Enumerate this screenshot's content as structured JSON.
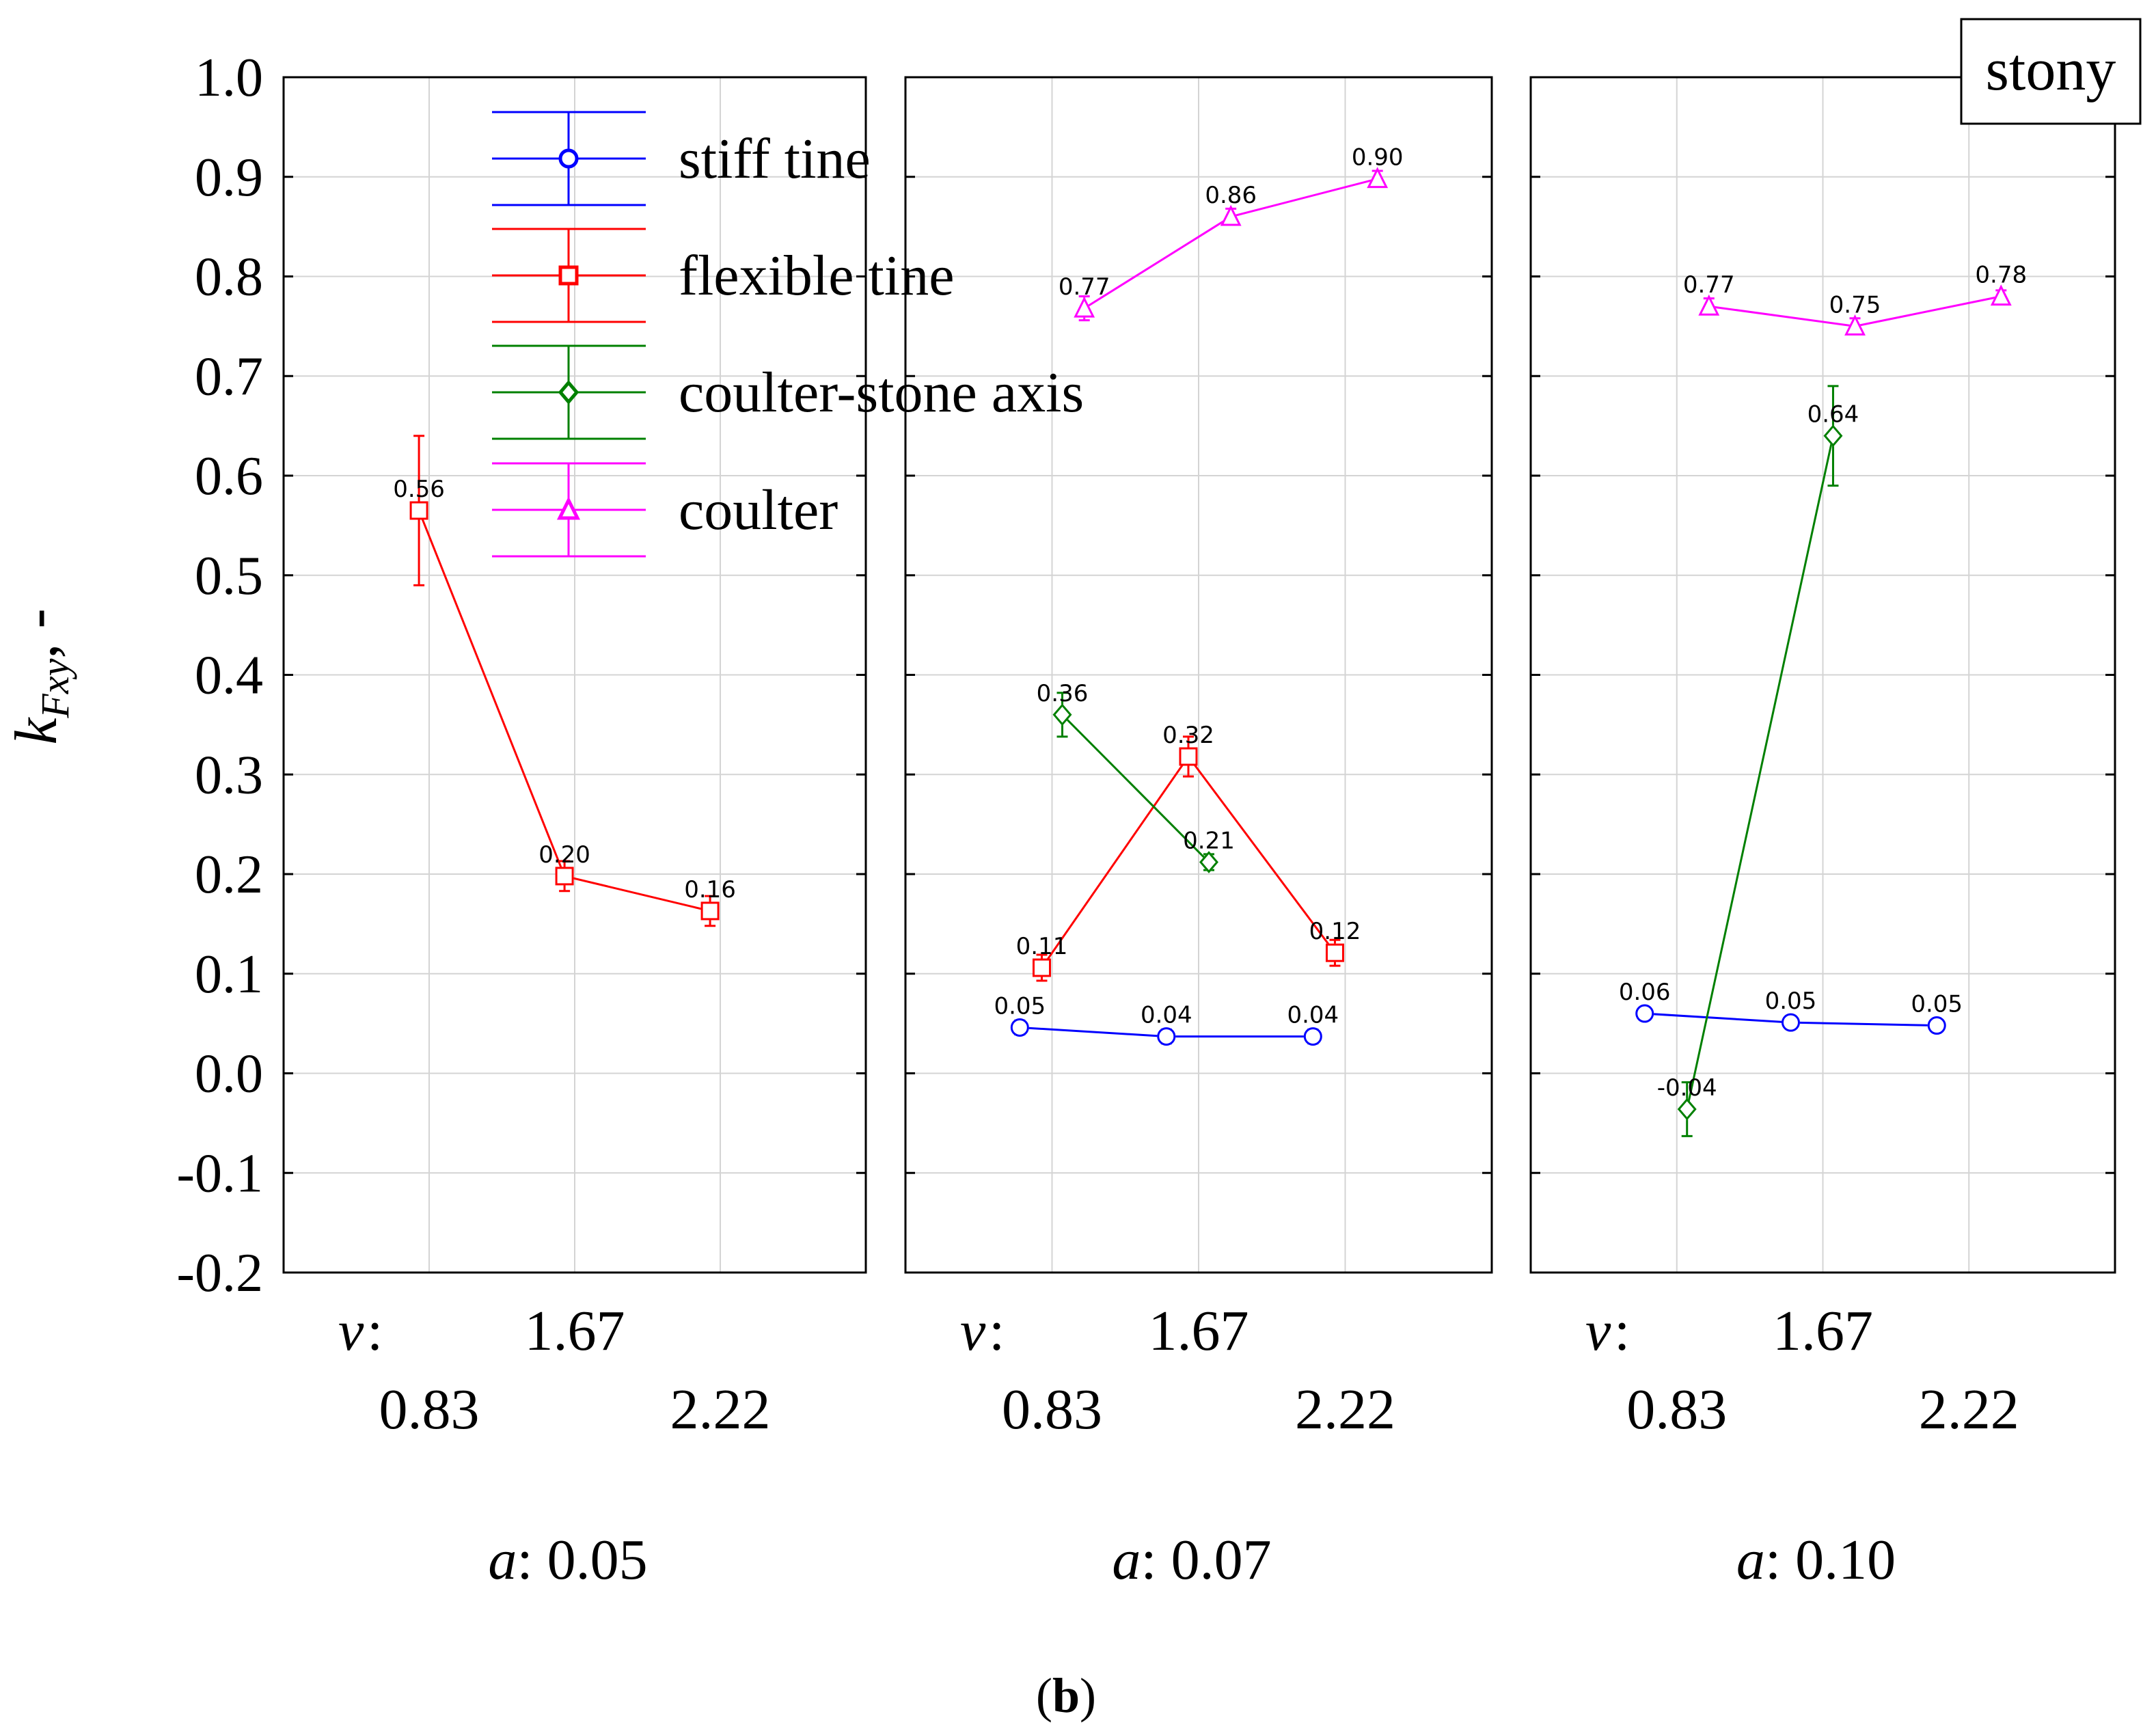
{
  "chart_data": {
    "type": "line",
    "title": "",
    "ylabel_main": "k",
    "ylabel_sub": "Fxy",
    "ylabel_suffix": ", -",
    "ylim": [
      -0.2,
      1.0
    ],
    "yticks": [
      "1.0",
      "0.9",
      "0.8",
      "0.7",
      "0.6",
      "0.5",
      "0.4",
      "0.3",
      "0.2",
      "0.1",
      "0.0",
      "-0.1",
      "-0.2"
    ],
    "ytick_values": [
      1.0,
      0.9,
      0.8,
      0.7,
      0.6,
      0.5,
      0.4,
      0.3,
      0.2,
      0.1,
      0.0,
      -0.1,
      -0.2
    ],
    "categories": [
      "0.83",
      "1.67",
      "2.22"
    ],
    "v_label": "v",
    "a_label": "a",
    "stony_label": "stony",
    "caption": "b",
    "legend": [
      {
        "name": "stiff tine",
        "color": "#0000ff",
        "marker": "circle"
      },
      {
        "name": "flexible tine",
        "color": "#ff0000",
        "marker": "square"
      },
      {
        "name": "coulter-stone axis",
        "color": "#008000",
        "marker": "diamond"
      },
      {
        "name": "coulter",
        "color": "#ff00ff",
        "marker": "triangle"
      }
    ],
    "panels": [
      {
        "a_value": "0.05",
        "series": [
          {
            "name": "flexible tine",
            "color": "#ff0000",
            "marker": "square",
            "values": [
              0.565,
              0.198,
              0.163
            ],
            "labels": [
              "0.56",
              "0.20",
              "0.16"
            ],
            "err": [
              0.075,
              0.015,
              0.015
            ],
            "xoff": -0.07
          }
        ]
      },
      {
        "a_value": "0.07",
        "series": [
          {
            "name": "stiff tine",
            "color": "#0000ff",
            "marker": "circle",
            "values": [
              0.046,
              0.037,
              0.037
            ],
            "labels": [
              "0.05",
              "0.04",
              "0.04"
            ],
            "err": [
              0.007,
              0.007,
              0.007
            ],
            "xoff": -0.22
          },
          {
            "name": "flexible tine",
            "color": "#ff0000",
            "marker": "square",
            "values": [
              0.106,
              0.318,
              0.121
            ],
            "labels": [
              "0.11",
              "0.32",
              "0.12"
            ],
            "err": [
              0.013,
              0.02,
              0.013
            ],
            "xoff": -0.07
          },
          {
            "name": "coulter-stone axis",
            "color": "#008000",
            "marker": "diamond",
            "values": [
              0.36,
              0.212,
              null
            ],
            "labels": [
              "0.36",
              "0.21",
              ""
            ],
            "err": [
              0.022,
              0.008,
              0
            ],
            "xoff": 0.07
          },
          {
            "name": "coulter",
            "color": "#ff00ff",
            "marker": "triangle",
            "values": [
              0.768,
              0.86,
              0.898
            ],
            "labels": [
              "0.77",
              "0.86",
              "0.90"
            ],
            "err": [
              0.012,
              0.008,
              0.008
            ],
            "xoff": 0.22
          }
        ]
      },
      {
        "a_value": "0.10",
        "series": [
          {
            "name": "stiff tine",
            "color": "#0000ff",
            "marker": "circle",
            "values": [
              0.06,
              0.051,
              0.048
            ],
            "labels": [
              "0.06",
              "0.05",
              "0.05"
            ],
            "err": [
              0.006,
              0.006,
              0.006
            ],
            "xoff": -0.22
          },
          {
            "name": "coulter-stone axis",
            "color": "#008000",
            "marker": "diamond",
            "values": [
              -0.036,
              0.64,
              null
            ],
            "labels": [
              "-0.04",
              "0.64",
              ""
            ],
            "err": [
              0.027,
              0.05,
              0
            ],
            "xoff": 0.07
          },
          {
            "name": "coulter",
            "color": "#ff00ff",
            "marker": "triangle",
            "values": [
              0.77,
              0.75,
              0.78
            ],
            "labels": [
              "0.77",
              "0.75",
              "0.78"
            ],
            "err": [
              0.008,
              0.008,
              0.006
            ],
            "xoff": 0.22
          }
        ]
      }
    ]
  }
}
